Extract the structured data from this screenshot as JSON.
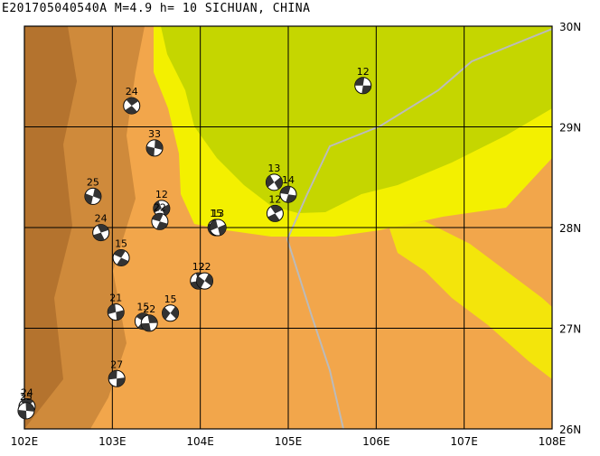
{
  "title": "E201705040540A  M=4.9  h= 10  SICHUAN, CHINA",
  "map": {
    "lon_range": [
      102,
      108
    ],
    "lat_range": [
      26,
      30
    ],
    "lon_labels": [
      "102E",
      "103E",
      "104E",
      "105E",
      "106E",
      "107E",
      "108E"
    ],
    "lat_labels": [
      "30N",
      "29N",
      "28N",
      "27N",
      "26N"
    ],
    "colors": {
      "lowland_green": "#c5d600",
      "plain_yellow": "#f3f000",
      "highland_orange": "#f2a64b",
      "mountain_brown": "#cf8a3b",
      "peak_dark": "#a86a2a",
      "grid": "#000000",
      "river": "#bbbbbb"
    }
  },
  "events": [
    {
      "depth": "12",
      "lon": 105.85,
      "lat": 29.41
    },
    {
      "depth": "24",
      "lon": 103.22,
      "lat": 29.21
    },
    {
      "depth": "33",
      "lon": 103.48,
      "lat": 28.79
    },
    {
      "depth": "13",
      "lon": 104.84,
      "lat": 28.45
    },
    {
      "depth": "14",
      "lon": 105.0,
      "lat": 28.33
    },
    {
      "depth": "12",
      "lon": 104.85,
      "lat": 28.14
    },
    {
      "depth": "25",
      "lon": 102.78,
      "lat": 28.31
    },
    {
      "depth": "12",
      "lon": 103.56,
      "lat": 28.19
    },
    {
      "depth": "22",
      "lon": 103.54,
      "lat": 28.06
    },
    {
      "depth": "24",
      "lon": 102.87,
      "lat": 27.95
    },
    {
      "depth": "15",
      "lon": 104.18,
      "lat": 28.0
    },
    {
      "depth": "13",
      "lon": 104.2,
      "lat": 28.0
    },
    {
      "depth": "15",
      "lon": 103.1,
      "lat": 27.7
    },
    {
      "depth": "12",
      "lon": 103.98,
      "lat": 27.47
    },
    {
      "depth": "22",
      "lon": 104.05,
      "lat": 27.47
    },
    {
      "depth": "21",
      "lon": 103.04,
      "lat": 27.16
    },
    {
      "depth": "15",
      "lon": 103.35,
      "lat": 27.07
    },
    {
      "depth": "22",
      "lon": 103.42,
      "lat": 27.05
    },
    {
      "depth": "15",
      "lon": 103.66,
      "lat": 27.15
    },
    {
      "depth": "27",
      "lon": 103.05,
      "lat": 26.5
    },
    {
      "depth": "24",
      "lon": 102.03,
      "lat": 26.22
    },
    {
      "depth": "25",
      "lon": 102.02,
      "lat": 26.18
    }
  ]
}
